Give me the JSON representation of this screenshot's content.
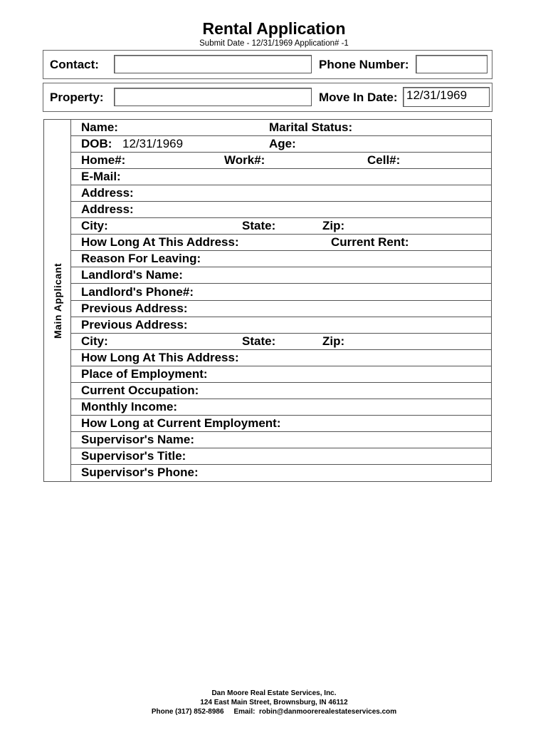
{
  "header": {
    "title": "Rental Application",
    "subtitle": "Submit Date - 12/31/1969  Application# -1"
  },
  "contact": {
    "label": "Contact:",
    "value": "",
    "phone_label": "Phone Number:",
    "phone_value": ""
  },
  "property": {
    "label": "Property:",
    "value": "",
    "move_in_label": "Move In Date:",
    "move_in_value": "12/31/1969"
  },
  "applicant": {
    "section_label": "Main Applicant",
    "rows": [
      [
        {
          "t": "Name:"
        },
        {
          "t": "Marital Status:",
          "c": 2
        }
      ],
      [
        {
          "t": "DOB:"
        },
        {
          "t": "12/31/1969",
          "v": 1
        },
        {
          "t": "Age:",
          "c": 2
        }
      ],
      [
        {
          "t": "Home#:"
        },
        {
          "t": "Work#:",
          "c": "w"
        },
        {
          "t": "Cell#:",
          "c": "cell"
        }
      ],
      [
        {
          "t": "E-Mail:"
        }
      ],
      [
        {
          "t": "Address:"
        }
      ],
      [
        {
          "t": "Address:"
        }
      ],
      [
        {
          "t": "City:"
        },
        {
          "t": "State:",
          "c": "st"
        },
        {
          "t": "Zip:",
          "c": "zip"
        }
      ],
      [
        {
          "t": "How Long At This Address:"
        },
        {
          "t": "Current Rent:",
          "c": "rent"
        }
      ],
      [
        {
          "t": "Reason For Leaving:"
        }
      ],
      [
        {
          "t": "Landlord's Name:"
        }
      ],
      [
        {
          "t": "Landlord's Phone#:"
        }
      ],
      [
        {
          "t": "Previous Address:"
        }
      ],
      [
        {
          "t": "Previous Address:"
        }
      ],
      [
        {
          "t": "City:"
        },
        {
          "t": "State:",
          "c": "st"
        },
        {
          "t": "Zip:",
          "c": "zip"
        }
      ],
      [
        {
          "t": "How Long At This Address:"
        }
      ],
      [
        {
          "t": "Place of Employment:"
        }
      ],
      [
        {
          "t": "Current Occupation:"
        }
      ],
      [
        {
          "t": "Monthly Income:"
        }
      ],
      [
        {
          "t": "How Long at Current Employment:"
        }
      ],
      [
        {
          "t": "Supervisor's Name:"
        }
      ],
      [
        {
          "t": "Supervisor's Title:"
        }
      ],
      [
        {
          "t": "Supervisor's Phone:"
        }
      ]
    ]
  },
  "footer": {
    "company": "Dan Moore Real Estate Services, Inc.",
    "address": "124 East Main Street, Brownsburg, IN 46112",
    "contact": "Phone (317) 852-8986     Email:  robin@danmoorerealestateservices.com"
  }
}
